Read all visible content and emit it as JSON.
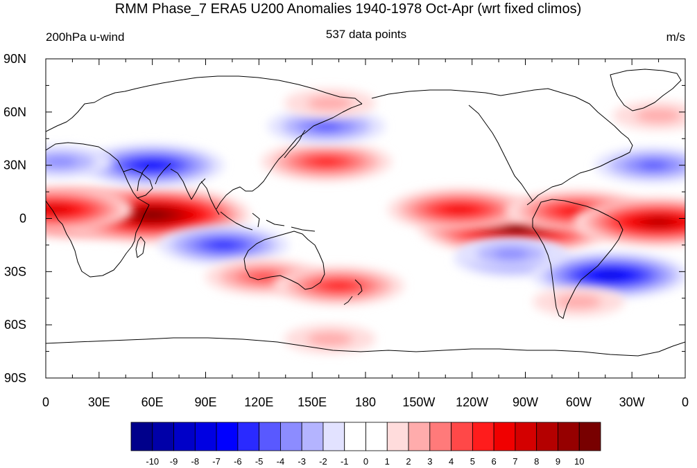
{
  "title": "RMM Phase_7 ERA5 U200 Anomalies 1940-1978 Oct-Apr (wrt fixed climos)",
  "subtitle_left": "200hPa u-wind",
  "subtitle_center": "537 data points",
  "subtitle_right": "m/s",
  "y_ticks": [
    {
      "label": "90N",
      "lat": 90
    },
    {
      "label": "60N",
      "lat": 60
    },
    {
      "label": "30N",
      "lat": 30
    },
    {
      "label": "0",
      "lat": 0
    },
    {
      "label": "30S",
      "lat": -30
    },
    {
      "label": "60S",
      "lat": -60
    },
    {
      "label": "90S",
      "lat": -90
    }
  ],
  "x_ticks": [
    {
      "label": "0",
      "lon": 0
    },
    {
      "label": "30E",
      "lon": 30
    },
    {
      "label": "60E",
      "lon": 60
    },
    {
      "label": "90E",
      "lon": 90
    },
    {
      "label": "120E",
      "lon": 120
    },
    {
      "label": "150E",
      "lon": 150
    },
    {
      "label": "180",
      "lon": 180
    },
    {
      "label": "150W",
      "lon": 210
    },
    {
      "label": "120W",
      "lon": 240
    },
    {
      "label": "90W",
      "lon": 270
    },
    {
      "label": "60W",
      "lon": 300
    },
    {
      "label": "30W",
      "lon": 330
    },
    {
      "label": "0",
      "lon": 360
    }
  ],
  "colorbar": {
    "labels": [
      "-10",
      "-9",
      "-8",
      "-7",
      "-6",
      "-5",
      "-4",
      "-3",
      "-2",
      "-1",
      "0",
      "1",
      "2",
      "3",
      "4",
      "5",
      "6",
      "7",
      "8",
      "9",
      "10"
    ],
    "colors": [
      "#00008b",
      "#0000a8",
      "#0000c8",
      "#0000e2",
      "#0000ff",
      "#2a2aff",
      "#5959ff",
      "#8c8cff",
      "#b4b4ff",
      "#e2e2ff",
      "#ffffff",
      "#ffffff",
      "#ffdcdc",
      "#ffacac",
      "#ff7a7a",
      "#ff4848",
      "#ff1c1c",
      "#f00000",
      "#d40000",
      "#b40000",
      "#960000",
      "#780000"
    ]
  },
  "anomaly_features": [
    {
      "lon": 20,
      "lat": 3,
      "value": 9
    },
    {
      "lon": 60,
      "lat": 2,
      "value": 10
    },
    {
      "lon": 5,
      "lat": 5,
      "value": 7
    },
    {
      "lon": 265,
      "lat": -5,
      "value": 10
    },
    {
      "lon": 233,
      "lat": 5,
      "value": 6
    },
    {
      "lon": 300,
      "lat": 4,
      "value": 6
    },
    {
      "lon": 345,
      "lat": -2,
      "value": 8
    },
    {
      "lon": 60,
      "lat": 30,
      "value": -6
    },
    {
      "lon": 8,
      "lat": 32,
      "value": -3
    },
    {
      "lon": 100,
      "lat": -15,
      "value": -5
    },
    {
      "lon": 158,
      "lat": 32,
      "value": 5
    },
    {
      "lon": 158,
      "lat": 52,
      "value": -4
    },
    {
      "lon": 123,
      "lat": -33,
      "value": 4
    },
    {
      "lon": 165,
      "lat": -38,
      "value": 5
    },
    {
      "lon": 263,
      "lat": -23,
      "value": -4
    },
    {
      "lon": 318,
      "lat": -32,
      "value": -7
    },
    {
      "lon": 342,
      "lat": 30,
      "value": -4
    },
    {
      "lon": 345,
      "lat": 58,
      "value": 2
    },
    {
      "lon": 160,
      "lat": 65,
      "value": 2
    },
    {
      "lon": 300,
      "lat": -47,
      "value": 2
    },
    {
      "lon": 160,
      "lat": -68,
      "value": 2
    },
    {
      "lon": 262,
      "lat": -20,
      "value": -3
    }
  ]
}
